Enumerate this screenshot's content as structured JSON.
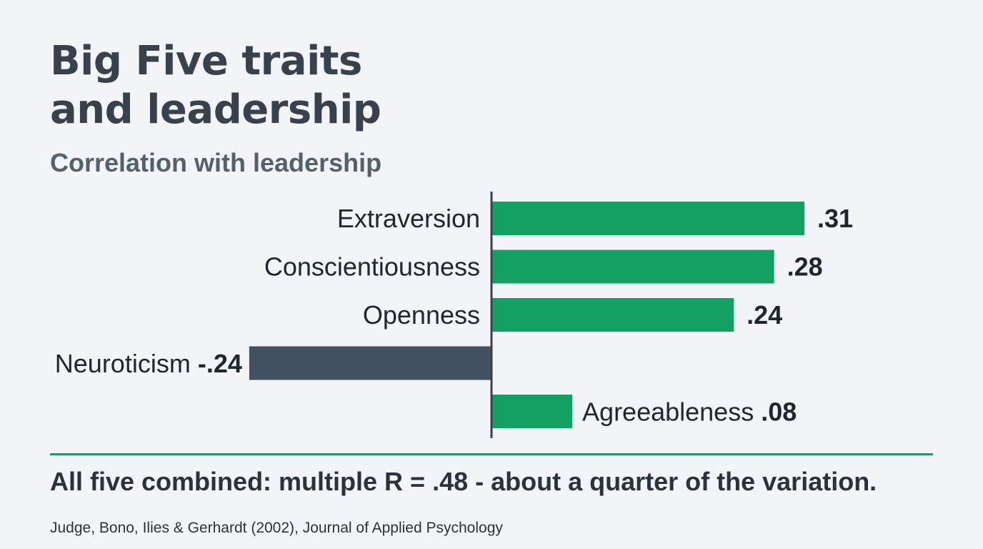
{
  "header": {
    "title_line1": "Big Five traits",
    "title_line2": "and leadership",
    "subtitle": "Correlation with leadership"
  },
  "chart_data": {
    "type": "bar",
    "orientation": "horizontal",
    "categories": [
      "Extraversion",
      "Conscientiousness",
      "Openness",
      "Neuroticism",
      "Agreeableness"
    ],
    "values": [
      0.31,
      0.28,
      0.24,
      -0.24,
      0.08
    ],
    "value_labels": [
      ".31",
      ".28",
      ".24",
      "-.24",
      ".08"
    ],
    "xlim": [
      -0.24,
      0.31
    ],
    "colors": {
      "positive": "#14a062",
      "negative": "#435060",
      "axis": "#39414d"
    }
  },
  "footer": {
    "takeaway": "All five combined: multiple R = .48 - about a quarter of the variation.",
    "source": "Judge, Bono, Ilies & Gerhardt (2002), Journal of Applied Psychology"
  }
}
